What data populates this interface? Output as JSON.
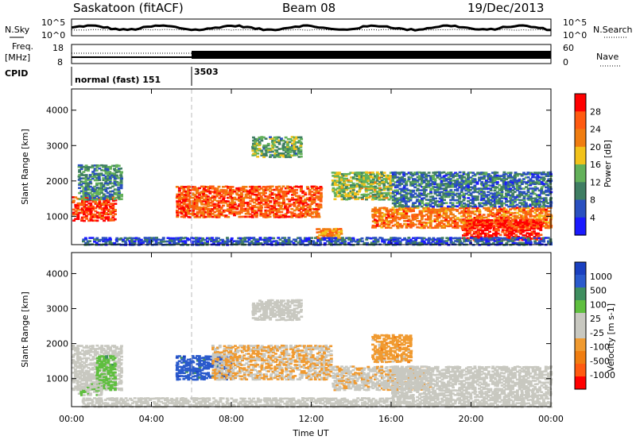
{
  "header": {
    "station": "Saskatoon (fitACF)",
    "beam": "Beam 08",
    "date": "19/Dec/2013"
  },
  "noise_panel": {
    "left_label": "N.Sky",
    "left_ticks": [
      "10^5",
      "10^0"
    ],
    "right_ticks": [
      "10^5",
      "10^0"
    ],
    "right_label": "N.Search"
  },
  "freq_panel": {
    "left_label_top": "Freq.",
    "left_label_unit": "[MHz]",
    "left_ticks": [
      "18",
      "8"
    ],
    "right_ticks": [
      "60",
      "0"
    ],
    "right_label": "Nave"
  },
  "cpid_panel": {
    "label": "CPID",
    "segments": [
      {
        "text": "normal (fast) 151",
        "start_hour": 0
      },
      {
        "text": "3503",
        "start_hour": 6
      }
    ]
  },
  "colors": {
    "power_scale": [
      "#1a1aff",
      "#2a50c0",
      "#3f7e63",
      "#63b15a",
      "#f2c21a",
      "#f07d10",
      "#ff5a10",
      "#ff0000"
    ],
    "velocity_scale": [
      "#ff0000",
      "#ff5a10",
      "#f07d10",
      "#f09a30",
      "#c8c8c0",
      "#c8c8c0",
      "#5fbf3f",
      "#3f8e5f",
      "#2a5acc",
      "#1a40c0"
    ],
    "accent_ground": "#a0a0a0"
  },
  "chart_data": [
    {
      "type": "heatmap",
      "title": "Power",
      "xlabel": "Time UT",
      "ylabel": "Slant Range [km]",
      "xlim": [
        0,
        24
      ],
      "ylim": [
        200,
        4600
      ],
      "x_ticks": [
        "00:00",
        "04:00",
        "08:00",
        "12:00",
        "16:00",
        "20:00",
        "00:00"
      ],
      "y_ticks": [
        "1000",
        "2000",
        "3000",
        "4000"
      ],
      "colorbar": {
        "label": "Power [dB]",
        "ticks": [
          "28",
          "24",
          "20",
          "16",
          "12",
          "8",
          "4"
        ],
        "range": [
          0,
          30
        ]
      },
      "regions": [
        {
          "t0": 0.0,
          "t1": 2.2,
          "r0": 900,
          "r1": 1600,
          "value": 26
        },
        {
          "t0": 0.3,
          "t1": 2.5,
          "r0": 1500,
          "r1": 2500,
          "value": 10
        },
        {
          "t0": 5.2,
          "t1": 12.5,
          "r0": 1000,
          "r1": 1900,
          "value": 24
        },
        {
          "t0": 9.0,
          "t1": 11.5,
          "r0": 2700,
          "r1": 3300,
          "value": 12
        },
        {
          "t0": 13.0,
          "t1": 16.0,
          "r0": 1500,
          "r1": 2300,
          "value": 14
        },
        {
          "t0": 15.0,
          "t1": 24.0,
          "r0": 700,
          "r1": 1300,
          "value": 22
        },
        {
          "t0": 16.0,
          "t1": 24.0,
          "r0": 1300,
          "r1": 2300,
          "value": 8
        },
        {
          "t0": 19.5,
          "t1": 23.5,
          "r0": 350,
          "r1": 950,
          "value": 28
        },
        {
          "t0": 12.2,
          "t1": 13.5,
          "r0": 400,
          "r1": 700,
          "value": 20
        },
        {
          "t0": 0.5,
          "t1": 24.0,
          "r0": 220,
          "r1": 450,
          "value": 6
        }
      ]
    },
    {
      "type": "heatmap",
      "title": "Velocity",
      "xlabel": "Time UT",
      "ylabel": "Slant Range [km]",
      "xlim": [
        0,
        24
      ],
      "ylim": [
        200,
        4600
      ],
      "x_ticks": [
        "00:00",
        "04:00",
        "08:00",
        "12:00",
        "16:00",
        "20:00",
        "00:00"
      ],
      "y_ticks": [
        "1000",
        "2000",
        "3000",
        "4000"
      ],
      "colorbar": {
        "label": "Velocity [m s-1]",
        "ticks": [
          "1000",
          "500",
          "100",
          "25",
          "-25",
          "-100",
          "-500",
          "-1000"
        ],
        "range": [
          -1000,
          1000
        ]
      },
      "regions": [
        {
          "t0": 0.0,
          "t1": 2.5,
          "r0": 700,
          "r1": 2000,
          "value": 0
        },
        {
          "t0": 1.2,
          "t1": 2.2,
          "r0": 700,
          "r1": 1700,
          "value": 300
        },
        {
          "t0": 0.3,
          "t1": 1.5,
          "r0": 550,
          "r1": 900,
          "value": 150
        },
        {
          "t0": 5.2,
          "t1": 8.0,
          "r0": 1000,
          "r1": 1700,
          "value": 700
        },
        {
          "t0": 7.0,
          "t1": 13.0,
          "r0": 1000,
          "r1": 2000,
          "value": -200
        },
        {
          "t0": 9.0,
          "t1": 11.5,
          "r0": 2700,
          "r1": 3300,
          "value": 0
        },
        {
          "t0": 13.0,
          "t1": 18.0,
          "r0": 700,
          "r1": 1400,
          "value": -150
        },
        {
          "t0": 15.0,
          "t1": 17.0,
          "r0": 1500,
          "r1": 2300,
          "value": -300
        },
        {
          "t0": 16.0,
          "t1": 24.0,
          "r0": 500,
          "r1": 1400,
          "value": 0
        },
        {
          "t0": 0.5,
          "t1": 24.0,
          "r0": 220,
          "r1": 500,
          "value": 0
        }
      ]
    }
  ]
}
